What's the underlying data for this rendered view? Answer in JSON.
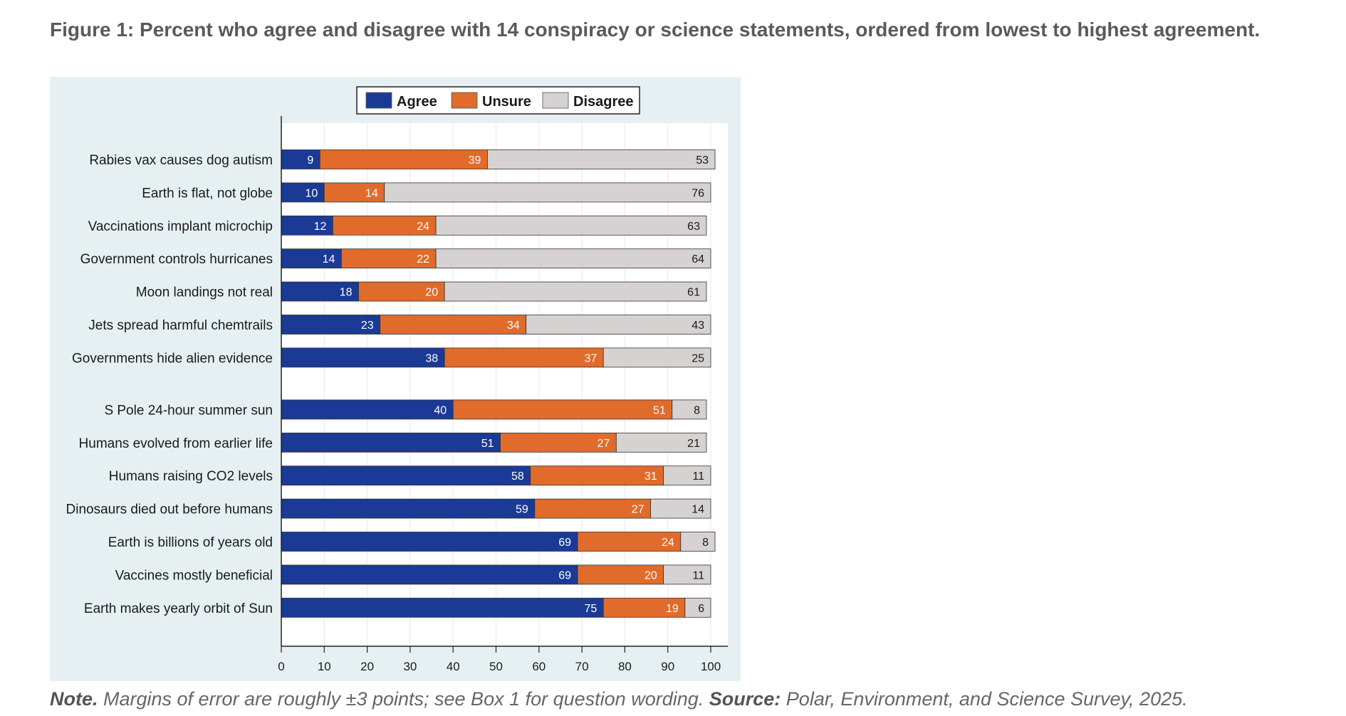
{
  "title": "Figure 1:  Percent who agree and disagree with 14 conspiracy or science statements, ordered from lowest to highest agreement.",
  "note": {
    "note_label": "Note.",
    "note_text": " Margins of error are roughly ±3 points; see Box 1 for question wording. ",
    "source_label": "Source:",
    "source_text": " Polar, Environment, and Science Survey, 2025."
  },
  "chart_data": {
    "type": "bar",
    "orientation": "horizontal",
    "stacked": true,
    "categories": [
      "Rabies vax causes dog autism",
      "Earth is flat, not globe",
      "Vaccinations implant microchip",
      "Government controls hurricanes",
      "Moon landings not real",
      "Jets spread harmful chemtrails",
      "Governments hide alien evidence",
      "S Pole 24-hour summer sun",
      "Humans evolved from earlier life",
      "Humans raising CO2 levels",
      "Dinosaurs died out before humans",
      "Earth is billions of years old",
      "Vaccines mostly beneficial",
      "Earth makes yearly orbit of Sun"
    ],
    "groups": [
      [
        0,
        1,
        2,
        3,
        4,
        5,
        6
      ],
      [
        7,
        8,
        9,
        10,
        11,
        12,
        13
      ]
    ],
    "series": [
      {
        "name": "Agree",
        "color": "#1b3a95",
        "label_color": "#ffffff",
        "values": [
          9,
          10,
          12,
          14,
          18,
          23,
          38,
          40,
          51,
          58,
          59,
          69,
          69,
          75
        ]
      },
      {
        "name": "Unsure",
        "color": "#e06b2b",
        "label_color": "#ffffff",
        "values": [
          39,
          14,
          24,
          22,
          20,
          34,
          37,
          51,
          27,
          31,
          27,
          24,
          20,
          19
        ]
      },
      {
        "name": "Disagree",
        "color": "#d6d2d1",
        "label_color": "#1a1a1a",
        "values": [
          53,
          76,
          63,
          64,
          61,
          43,
          25,
          8,
          21,
          11,
          14,
          8,
          11,
          6
        ]
      }
    ],
    "xlim": [
      0,
      100
    ],
    "xticks": [
      0,
      10,
      20,
      30,
      40,
      50,
      60,
      70,
      80,
      90,
      100
    ],
    "grid": true,
    "legend": "top"
  }
}
